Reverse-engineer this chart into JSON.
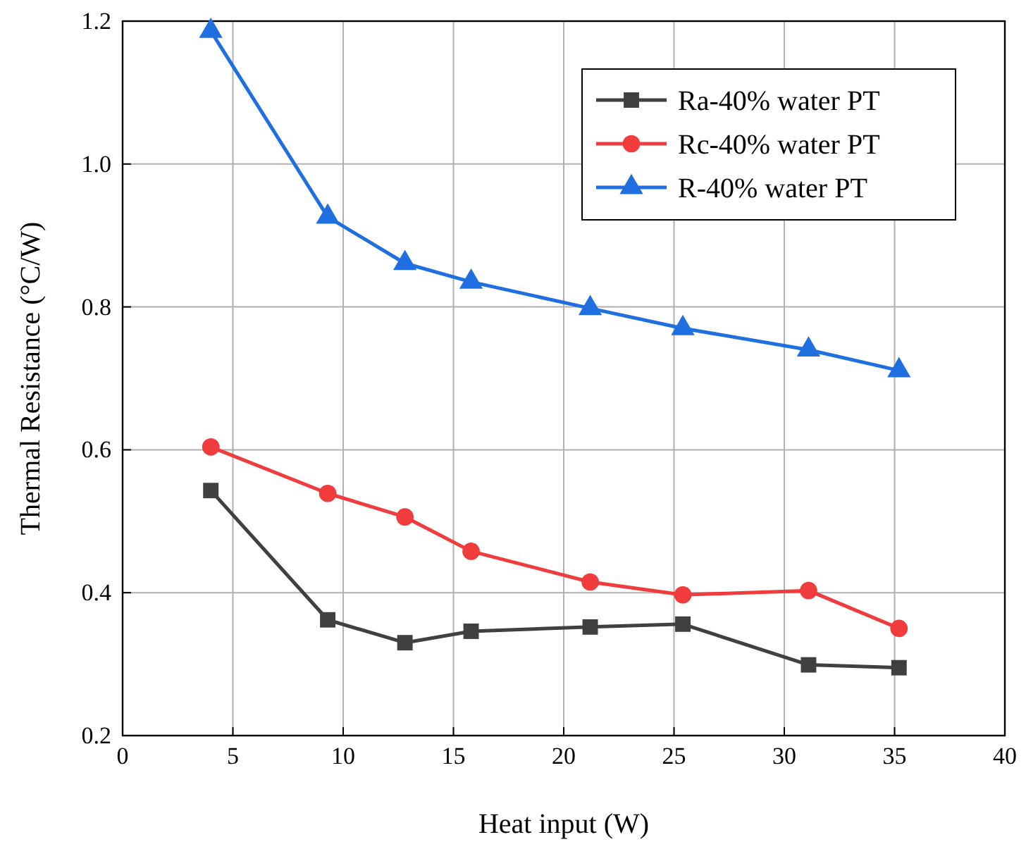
{
  "chart_data": {
    "type": "line",
    "xlabel": "Heat input (W)",
    "ylabel": "Thermal Resistance (°C/W)",
    "x": [
      4,
      9.3,
      12.8,
      15.8,
      21.2,
      25.4,
      31.1,
      35.2
    ],
    "series": [
      {
        "name": "Ra-40% water PT",
        "color": "#404040",
        "marker": "square",
        "values": [
          0.543,
          0.362,
          0.33,
          0.346,
          0.352,
          0.356,
          0.299,
          0.295
        ]
      },
      {
        "name": "Rc-40% water PT",
        "color": "#f03c3c",
        "marker": "circle",
        "values": [
          0.604,
          0.539,
          0.506,
          0.458,
          0.415,
          0.397,
          0.403,
          0.35
        ]
      },
      {
        "name": "R-40% water PT",
        "color": "#1f6fe0",
        "marker": "triangle",
        "values": [
          1.186,
          0.926,
          0.861,
          0.835,
          0.798,
          0.77,
          0.74,
          0.711
        ]
      }
    ],
    "xlim": [
      0,
      40
    ],
    "xticks": [
      0,
      5,
      10,
      15,
      20,
      25,
      30,
      35,
      40
    ],
    "ylim": [
      0.2,
      1.2
    ],
    "yticks": [
      {
        "value": 0.2,
        "label": "0.2"
      },
      {
        "value": 0.4,
        "label": "0.4"
      },
      {
        "value": 0.6,
        "label": "0.6"
      },
      {
        "value": 0.8,
        "label": "0.8"
      },
      {
        "value": 1.0,
        "label": "1.0"
      },
      {
        "value": 1.2,
        "label": "1.2"
      }
    ],
    "grid": true,
    "legend": "top right",
    "line_style": "solid"
  }
}
